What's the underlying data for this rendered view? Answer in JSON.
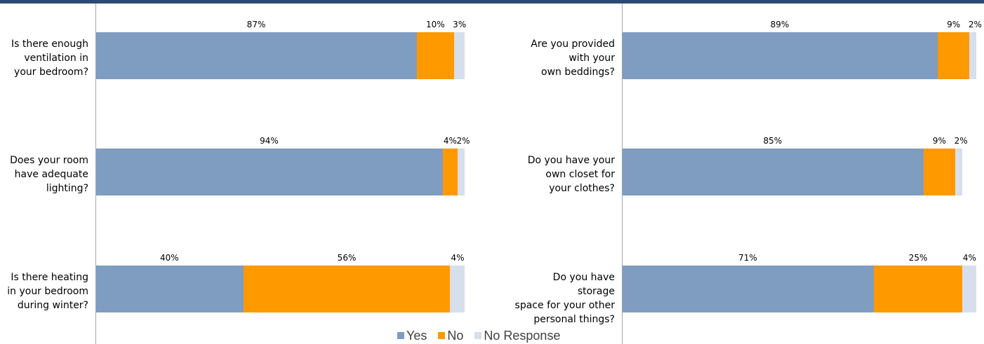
{
  "chart_data": {
    "type": "bar",
    "stacked": true,
    "orientation": "horizontal",
    "percent_axis_max": 100,
    "series_names": [
      "Yes",
      "No",
      "No Response"
    ],
    "colors": {
      "Yes": "#7f9cc1",
      "No": "#ff9900",
      "No Response": "#d6dfeb"
    },
    "legend_position": "bottom",
    "panels": [
      {
        "questions": [
          {
            "label": "Is there enough\nventilation in\nyour bedroom?",
            "values": [
              87,
              10,
              3
            ],
            "value_labels": [
              "87%",
              "10%",
              "3%"
            ]
          },
          {
            "label": "Does your room\nhave adequate\nlighting?",
            "values": [
              94,
              4,
              2
            ],
            "value_labels": [
              "94%",
              "4%",
              "2%"
            ]
          },
          {
            "label": "Is there heating\nin your bedroom\nduring winter?",
            "values": [
              40,
              56,
              4
            ],
            "value_labels": [
              "40%",
              "56%",
              "4%"
            ]
          }
        ]
      },
      {
        "questions": [
          {
            "label": "Are you provided\nwith your\nown beddings?",
            "values": [
              89,
              9,
              2
            ],
            "value_labels": [
              "89%",
              "9%",
              "2%"
            ]
          },
          {
            "label": "Do you have your\nown closet for\nyour clothes?",
            "values": [
              85,
              9,
              2
            ],
            "value_labels": [
              "85%",
              "9%",
              "2%"
            ]
          },
          {
            "label": "Do you have storage\nspace for your other\npersonal things?",
            "values": [
              71,
              25,
              4
            ],
            "value_labels": [
              "71%",
              "25%",
              "4%"
            ]
          }
        ]
      }
    ]
  },
  "legend": {
    "items": [
      "Yes",
      "No",
      "No Response"
    ]
  }
}
